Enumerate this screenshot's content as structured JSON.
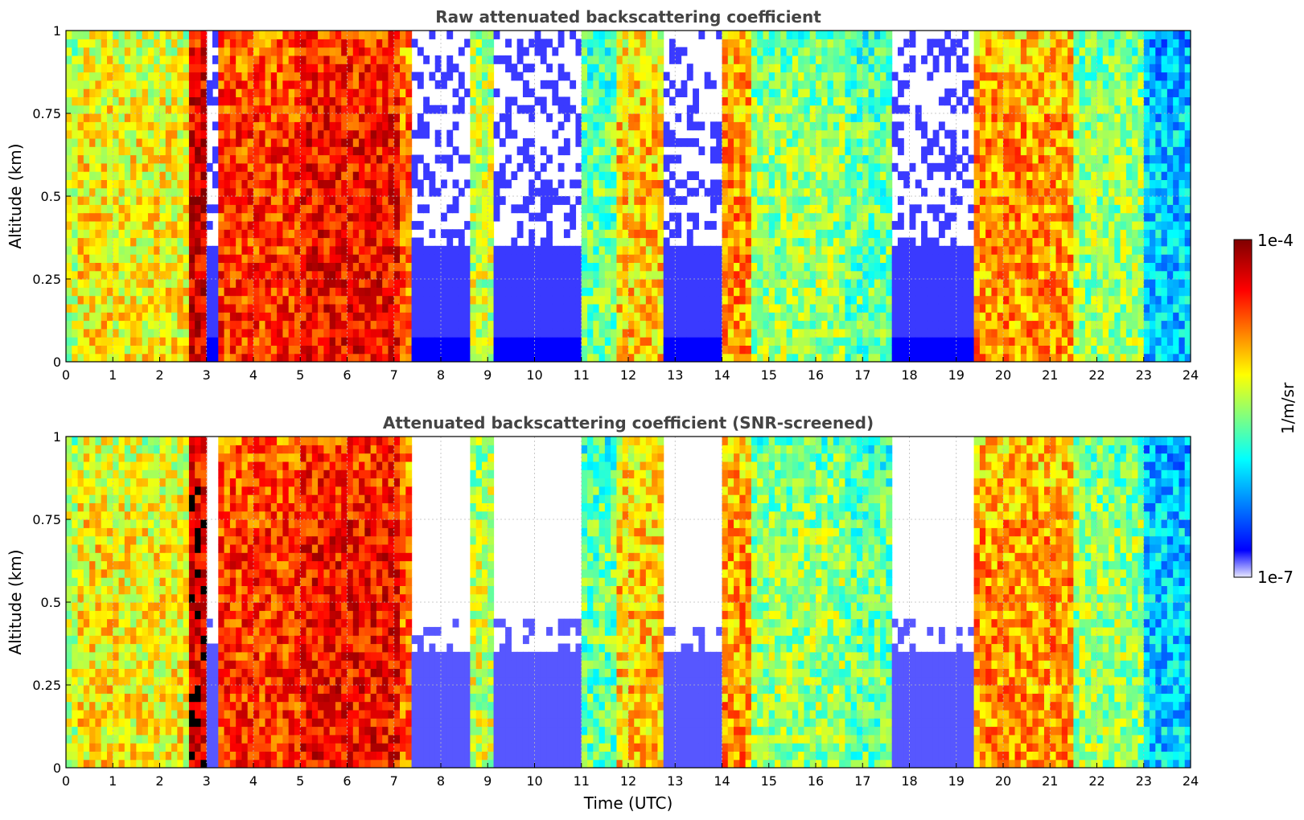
{
  "chart_data": [
    {
      "type": "heatmap",
      "title": "Raw attenuated backscattering coefficient",
      "xlabel": "",
      "ylabel": "Altitude (km)",
      "xlim": [
        0,
        24
      ],
      "ylim": [
        0,
        1
      ],
      "xticks": [
        "0",
        "1",
        "2",
        "3",
        "4",
        "5",
        "6",
        "7",
        "8",
        "9",
        "10",
        "11",
        "12",
        "13",
        "14",
        "15",
        "16",
        "17",
        "18",
        "19",
        "20",
        "21",
        "22",
        "23",
        "24"
      ],
      "yticks": [
        "0",
        "0.25",
        "0.5",
        "0.75",
        "1"
      ],
      "grid": true,
      "screened": false
    },
    {
      "type": "heatmap",
      "title": "Attenuated backscattering coefficient (SNR-screened)",
      "xlabel": "Time (UTC)",
      "ylabel": "Altitude (km)",
      "xlim": [
        0,
        24
      ],
      "ylim": [
        0,
        1
      ],
      "xticks": [
        "0",
        "1",
        "2",
        "3",
        "4",
        "5",
        "6",
        "7",
        "8",
        "9",
        "10",
        "11",
        "12",
        "13",
        "14",
        "15",
        "16",
        "17",
        "18",
        "19",
        "20",
        "21",
        "22",
        "23",
        "24"
      ],
      "yticks": [
        "0",
        "0.25",
        "0.5",
        "0.75",
        "1"
      ],
      "grid": true,
      "screened": true
    }
  ],
  "colorbar": {
    "label": "1/m/sr",
    "max_label": "1e-4",
    "min_label": "1e-7",
    "scale": "log",
    "colormap": [
      "#e8e8ff",
      "#0000ff",
      "#00ffff",
      "#ffff00",
      "#ff0000",
      "#800000"
    ]
  },
  "time_segments": [
    {
      "t0": 0.0,
      "t1": 0.25,
      "level": 0.55
    },
    {
      "t0": 0.25,
      "t1": 1.0,
      "level": 0.62
    },
    {
      "t0": 1.0,
      "t1": 2.6,
      "level": 0.6
    },
    {
      "t0": 2.6,
      "t1": 3.0,
      "level": 0.9
    },
    {
      "t0": 3.0,
      "t1": 3.3,
      "level": 0.25
    },
    {
      "t0": 3.3,
      "t1": 5.0,
      "level": 0.8
    },
    {
      "t0": 5.0,
      "t1": 7.1,
      "level": 0.85
    },
    {
      "t0": 7.1,
      "t1": 7.4,
      "level": 0.75
    },
    {
      "t0": 7.4,
      "t1": 8.6,
      "level": 0.2
    },
    {
      "t0": 8.6,
      "t1": 9.1,
      "level": 0.55
    },
    {
      "t0": 9.1,
      "t1": 11.0,
      "level": 0.2
    },
    {
      "t0": 11.0,
      "t1": 11.7,
      "level": 0.45
    },
    {
      "t0": 11.7,
      "t1": 12.7,
      "level": 0.65
    },
    {
      "t0": 12.7,
      "t1": 14.0,
      "level": 0.15
    },
    {
      "t0": 14.0,
      "t1": 14.6,
      "level": 0.7
    },
    {
      "t0": 14.6,
      "t1": 16.6,
      "level": 0.5
    },
    {
      "t0": 16.6,
      "t1": 17.6,
      "level": 0.45
    },
    {
      "t0": 17.6,
      "t1": 19.4,
      "level": 0.15
    },
    {
      "t0": 19.4,
      "t1": 21.5,
      "level": 0.7
    },
    {
      "t0": 21.5,
      "t1": 23.0,
      "level": 0.5
    },
    {
      "t0": 23.0,
      "t1": 24.0,
      "level": 0.3
    }
  ]
}
